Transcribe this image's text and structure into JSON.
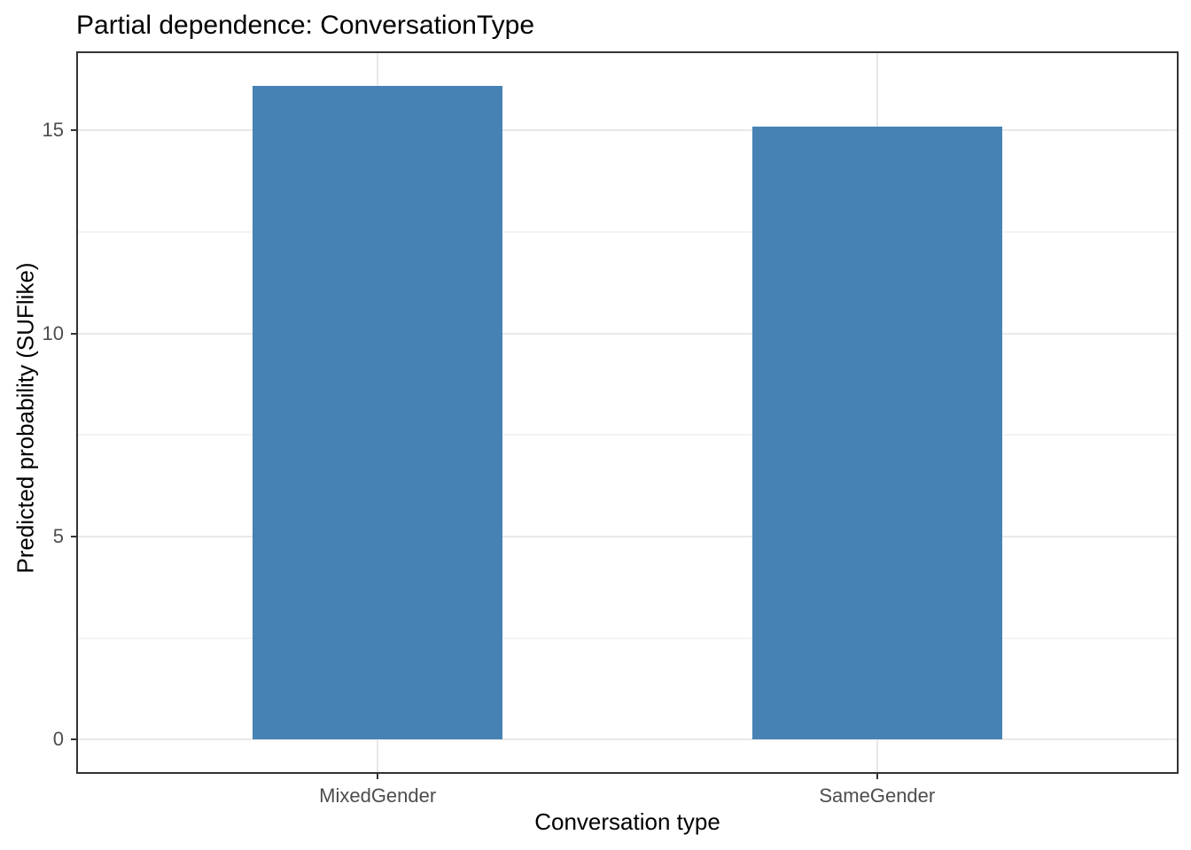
{
  "chart_data": {
    "type": "bar",
    "title": "Partial dependence: ConversationType",
    "xlabel": "Conversation type",
    "ylabel": "Predicted probability (SUFlike)",
    "categories": [
      "MixedGender",
      "SameGender"
    ],
    "values": [
      16.1,
      15.1
    ],
    "ylim": [
      -0.8,
      16.9
    ],
    "yticks": [
      0,
      5,
      10,
      15
    ],
    "ytick_labels": [
      "0",
      "5",
      "10",
      "15"
    ],
    "yticks_minor": [
      2.5,
      7.5,
      12.5
    ],
    "grid": "horizontal major and minor; vertical major at category centers",
    "legend": "none",
    "colors": {
      "bar_fill": "#4682B4",
      "panel_border": "#333333",
      "grid_major": "#e8e8e8",
      "grid_minor": "#f3f3f3",
      "tick_mark": "#333333",
      "tick_label": "#4d4d4d",
      "axis_title": "#000000",
      "title": "#000000",
      "background": "#ffffff"
    }
  }
}
